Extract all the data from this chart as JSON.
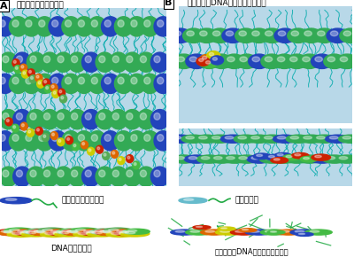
{
  "panel_A_label": "A",
  "panel_B_label": "B",
  "panel_A_title": "脅質の足が垂直に配置",
  "panel_B_title": "脅質の足がDNAに巻きついた配置",
  "legend_1_label": "正電荷を帯びた脅質",
  "legend_2_label": "中性の脅質",
  "legend_3_label": "DNA２重らせん",
  "legend_4_label": "脅質の足がDNAに巻きついた構造",
  "bg_color": "#ffffff",
  "panel_bg": "#b8d8e8",
  "blue_sphere": "#2244bb",
  "green_sphere": "#33aa55",
  "teal_color": "#00aaaa",
  "red_color": "#cc2200",
  "orange_color": "#dd6600",
  "yellow_color": "#cccc00",
  "dna_colors": [
    "#cc2200",
    "#44bb44",
    "#dd6600",
    "#cccc00",
    "#cc2200",
    "#55aa55",
    "#dd6600",
    "#cccc00"
  ]
}
